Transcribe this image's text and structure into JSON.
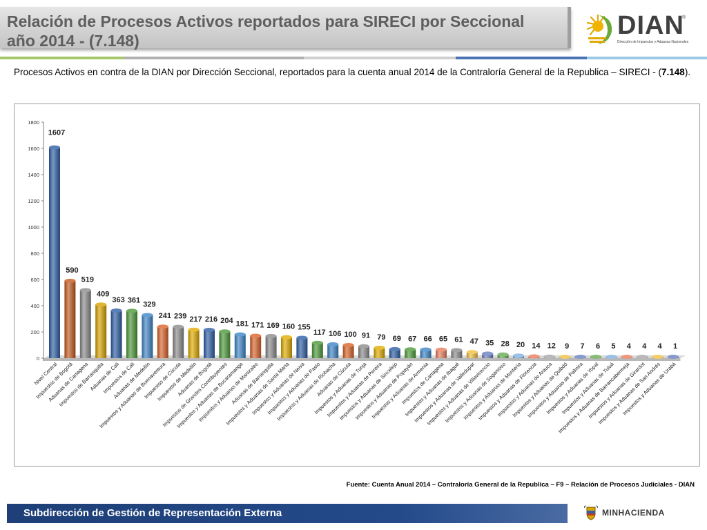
{
  "header": {
    "title_line1": "Relación de Procesos Activos reportados para SIRECI por Seccional",
    "title_line2": "año 2014 - (7.148)"
  },
  "logo": {
    "name": "DIAN",
    "registered": "®",
    "subtitle": "Dirección de Impuestos y Aduanas Nacionales",
    "icon": "sun-icon"
  },
  "description": {
    "text": "Procesos Activos en contra de la DIAN por Dirección Seccional, reportados para la cuenta anual 2014 de la Contraloría General de la Republica –  SIRECI - (",
    "bold": "7.148",
    "suffix": ")."
  },
  "source": "Fuente: Cuenta Anual 2014 – Contraloría General de  la Republica – F9 – Relación de Procesos Judiciales - DIAN",
  "footer": {
    "text": "Subdirección de Gestión de Representación Externa",
    "ministry": "MINHACIENDA",
    "ministry_icon": "coat-of-arms-icon"
  },
  "strip_colors": [
    "#a6c86a",
    "#b0b0b0",
    "#cfcfcf",
    "#4a74b4",
    "#9cc8e6"
  ],
  "chart_data": {
    "type": "bar",
    "title": "",
    "xlabel": "",
    "ylabel": "",
    "ylim": [
      0,
      1800
    ],
    "yticks": [
      0,
      200,
      400,
      600,
      800,
      1000,
      1200,
      1400,
      1600,
      1800
    ],
    "grid": false,
    "legend": "none",
    "categories": [
      "Nivel Central",
      "Impuestos de Bogotá",
      "Aduanas de Cartagena",
      "Impuestos de Barranquilla",
      "Aduanas de Cali",
      "Impuestos de Cali",
      "Aduanas de Medellín",
      "Impuestos y Aduanas de Buenaventura",
      "Impuestos de Cúcuta",
      "Impuestos de Medellín",
      "Aduanas de Bogotá",
      "Impuestos de Grandes Contribuyentes",
      "Impuestos y Aduanas de Bucaramanga",
      "Impuestos y Aduanas de Manizales",
      "Aduanas de Barranquilla",
      "Impuestos y Aduanas de Santa Marta",
      "Impuestos y Aduanas de Neiva",
      "Impuestos y Aduanas de Pasto",
      "Impuestos y Aduanas de Riohacha",
      "Aduanas de Cúcuta",
      "Impuestos y Aduanas de Tunja",
      "Impuestos y Aduanas de Pereira",
      "Impuestos y Aduanas de Sincelejo",
      "Impuestos y Aduanas de Popayán",
      "Impuestos y Aduanas de Armenia",
      "Impuestos de Cartagena",
      "Impuestos y Aduanas de Ibagué",
      "Impuestos y Aduanas de Valledupar",
      "Impuestos y Aduanas de Villavicencio",
      "Impuestos y Aduanas de Sogamoso",
      "Impuestos y Aduanas de Montería",
      "Impuestos y Aduanas de Florencia",
      "Impuestos y Aduanas de Arauca",
      "Impuestos y Aduanas de Quibdó",
      "Impuestos y Aduanas de Palmira",
      "Impuestos y Aduanas de Yopal",
      "Impuestos y Aduanas de Tuluá",
      "Impuestos y Aduanas de Barrancabermeja",
      "Impuestos y Aduanas de Girardot",
      "Impuestos y Aduanas de San Andrés",
      "Impuestos y Aduanas de Urabá"
    ],
    "values": [
      1607,
      590,
      519,
      409,
      363,
      361,
      329,
      241,
      239,
      217,
      216,
      204,
      181,
      171,
      169,
      160,
      155,
      117,
      106,
      100,
      91,
      79,
      69,
      67,
      66,
      65,
      61,
      47,
      35,
      28,
      20,
      14,
      12,
      9,
      7,
      6,
      5,
      4,
      4,
      4,
      1
    ],
    "colors": [
      "#2f5fa5",
      "#c55a1e",
      "#8c8c8c",
      "#d9a400",
      "#2f5fa5",
      "#4e9a3a",
      "#3f86c8",
      "#d9642a",
      "#8c8c8c",
      "#e0ac00",
      "#2f5fa5",
      "#4e9a3a",
      "#3f86c8",
      "#d9642a",
      "#8c8c8c",
      "#e0ac00",
      "#2f5fa5",
      "#4e9a3a",
      "#3f86c8",
      "#d9642a",
      "#8c8c8c",
      "#e0ac00",
      "#2f5fa5",
      "#4e9a3a",
      "#3f86c8",
      "#e87d5c",
      "#8c8c8c",
      "#f0c040",
      "#6a7fc0",
      "#6aaa55",
      "#7fb3e0",
      "#e87d5c",
      "#a8a8a8",
      "#f0c040",
      "#6a7fc0",
      "#6aaa55",
      "#7fb3e0",
      "#e87d5c",
      "#a8a8a8",
      "#f0c040",
      "#6a7fc0"
    ]
  }
}
